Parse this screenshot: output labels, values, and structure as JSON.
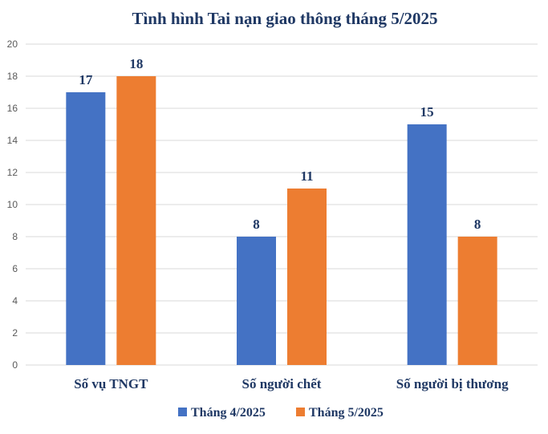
{
  "chart_data": {
    "type": "bar",
    "title": "Tình hình Tai nạn giao thông tháng 5/2025",
    "categories": [
      "Số vụ TNGT",
      "Số người chết",
      "Số người bị thương"
    ],
    "series": [
      {
        "name": "Tháng 4/2025",
        "values": [
          17,
          8,
          15
        ],
        "color": "#4472c4"
      },
      {
        "name": "Tháng 5/2025",
        "values": [
          18,
          11,
          8
        ],
        "color": "#ed7d31"
      }
    ],
    "ylim": [
      0,
      20
    ],
    "yticks": [
      0,
      2,
      4,
      6,
      8,
      10,
      12,
      14,
      16,
      18,
      20
    ],
    "grid": true,
    "legend": "bottom",
    "title_color": "#1f3864",
    "text_color": "#1f3864",
    "grid_color": "#d9d9d9"
  }
}
